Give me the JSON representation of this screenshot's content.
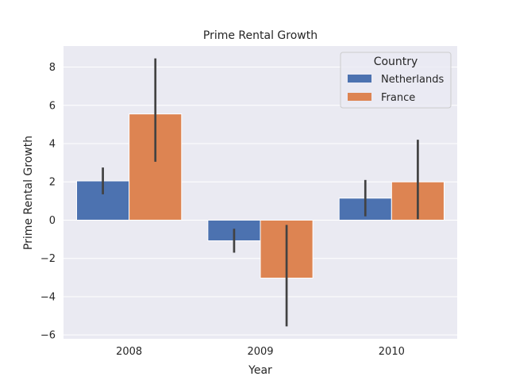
{
  "chart_data": {
    "type": "bar",
    "title": "Prime Rental Growth",
    "xlabel": "Year",
    "ylabel": "Prime Rental Growth",
    "categories": [
      "2008",
      "2009",
      "2010"
    ],
    "ylim": [
      -6.2,
      9.1
    ],
    "yticks": [
      -6,
      -4,
      -2,
      0,
      2,
      4,
      6,
      8
    ],
    "ytick_labels": [
      "−6",
      "−4",
      "−2",
      "0",
      "2",
      "4",
      "6",
      "8"
    ],
    "grid": true,
    "legend": {
      "title": "Country",
      "position": "top-right"
    },
    "series": [
      {
        "name": "Netherlands",
        "color": "#4c72b0",
        "values": [
          2.05,
          -1.08,
          1.15
        ],
        "error_low": [
          1.35,
          -1.7,
          0.2
        ],
        "error_high": [
          2.75,
          -0.45,
          2.1
        ]
      },
      {
        "name": "France",
        "color": "#dd8452",
        "values": [
          5.55,
          -3.03,
          2.0
        ],
        "error_low": [
          3.05,
          -5.55,
          0.05
        ],
        "error_high": [
          8.45,
          -0.25,
          4.2
        ]
      }
    ]
  }
}
